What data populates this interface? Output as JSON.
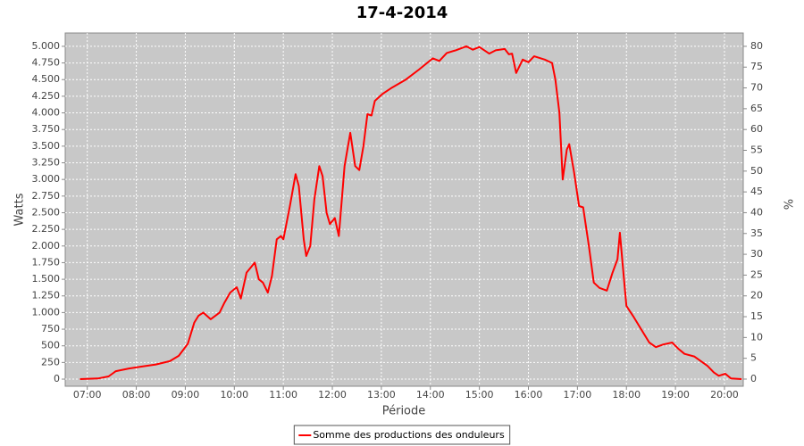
{
  "chart_data": {
    "type": "line",
    "title": "17-4-2014",
    "x_label": "Période",
    "y_label": "Watts",
    "y2_label": "%",
    "x": [
      "06:51",
      "07:13",
      "07:26",
      "07:35",
      "07:51",
      "08:08",
      "08:24",
      "08:41",
      "08:52",
      "09:03",
      "09:11",
      "09:16",
      "09:22",
      "09:31",
      "09:42",
      "09:48",
      "09:55",
      "10:03",
      "10:08",
      "10:15",
      "10:25",
      "10:30",
      "10:35",
      "10:41",
      "10:46",
      "10:52",
      "10:57",
      "11:00",
      "11:08",
      "11:15",
      "11:19",
      "11:25",
      "11:28",
      "11:33",
      "11:38",
      "11:44",
      "11:48",
      "11:53",
      "11:57",
      "12:03",
      "12:08",
      "12:15",
      "12:22",
      "12:28",
      "12:33",
      "12:38",
      "12:43",
      "12:48",
      "12:52",
      "13:01",
      "13:13",
      "13:30",
      "13:46",
      "14:03",
      "14:11",
      "14:20",
      "14:31",
      "14:44",
      "14:52",
      "15:00",
      "15:12",
      "15:20",
      "15:31",
      "15:36",
      "15:40",
      "15:45",
      "15:53",
      "16:00",
      "16:07",
      "16:20",
      "16:29",
      "16:33",
      "16:38",
      "16:42",
      "16:47",
      "16:50",
      "16:56",
      "17:02",
      "17:07",
      "17:14",
      "17:20",
      "17:27",
      "17:36",
      "17:43",
      "17:49",
      "17:52",
      "17:57",
      "18:00",
      "18:09",
      "18:18",
      "18:28",
      "18:36",
      "18:45",
      "18:56",
      "19:04",
      "19:11",
      "19:23",
      "19:39",
      "19:47",
      "19:53",
      "20:01",
      "20:08",
      "20:21"
    ],
    "series": [
      {
        "name": "Somme des productions des onduleurs",
        "color": "#ff0000",
        "values": [
          0,
          10,
          40,
          120,
          160,
          190,
          220,
          270,
          350,
          530,
          850,
          950,
          1000,
          900,
          1000,
          1150,
          1300,
          1380,
          1210,
          1600,
          1750,
          1500,
          1450,
          1300,
          1550,
          2100,
          2150,
          2100,
          2600,
          3080,
          2900,
          2100,
          1850,
          2000,
          2700,
          3200,
          3050,
          2500,
          2330,
          2420,
          2150,
          3200,
          3700,
          3200,
          3140,
          3500,
          3980,
          3960,
          4180,
          4280,
          4380,
          4500,
          4650,
          4820,
          4780,
          4900,
          4940,
          5000,
          4950,
          4990,
          4890,
          4940,
          4960,
          4880,
          4890,
          4600,
          4800,
          4760,
          4850,
          4800,
          4750,
          4500,
          4000,
          3000,
          3450,
          3530,
          3100,
          2600,
          2580,
          2000,
          1450,
          1370,
          1330,
          1600,
          1800,
          2200,
          1500,
          1100,
          930,
          750,
          550,
          480,
          520,
          550,
          450,
          380,
          340,
          200,
          100,
          50,
          80,
          10,
          0
        ]
      }
    ],
    "xlim": [
      "06:33",
      "20:23"
    ],
    "xticks": [
      "07:00",
      "08:00",
      "09:00",
      "10:00",
      "11:00",
      "12:00",
      "13:00",
      "14:00",
      "15:00",
      "16:00",
      "17:00",
      "18:00",
      "19:00",
      "20:00"
    ],
    "ylim": [
      -107,
      5200
    ],
    "yticks": [
      0,
      250,
      500,
      750,
      {
        "value": 1000,
        "label": "1.000"
      },
      {
        "value": 1250,
        "label": "1.250"
      },
      {
        "value": 1500,
        "label": "1.500"
      },
      {
        "value": 1750,
        "label": "1.750"
      },
      {
        "value": 2000,
        "label": "2.000"
      },
      {
        "value": 2250,
        "label": "2.250"
      },
      {
        "value": 2500,
        "label": "2.500"
      },
      {
        "value": 2750,
        "label": "2.750"
      },
      {
        "value": 3000,
        "label": "3.000"
      },
      {
        "value": 3250,
        "label": "3.250"
      },
      {
        "value": 3500,
        "label": "3.500"
      },
      {
        "value": 3750,
        "label": "3.750"
      },
      {
        "value": 4000,
        "label": "4.000"
      },
      {
        "value": 4250,
        "label": "4.250"
      },
      {
        "value": 4500,
        "label": "4.500"
      },
      {
        "value": 4750,
        "label": "4.750"
      },
      {
        "value": 5000,
        "label": "5.000"
      }
    ],
    "y2lim": [
      -1.72,
      83.2
    ],
    "y2ticks": [
      0,
      5,
      10,
      15,
      20,
      25,
      30,
      35,
      40,
      45,
      50,
      55,
      60,
      65,
      70,
      75,
      80
    ],
    "grid": true,
    "background": "#c8c8c8",
    "legend": "bottom"
  }
}
